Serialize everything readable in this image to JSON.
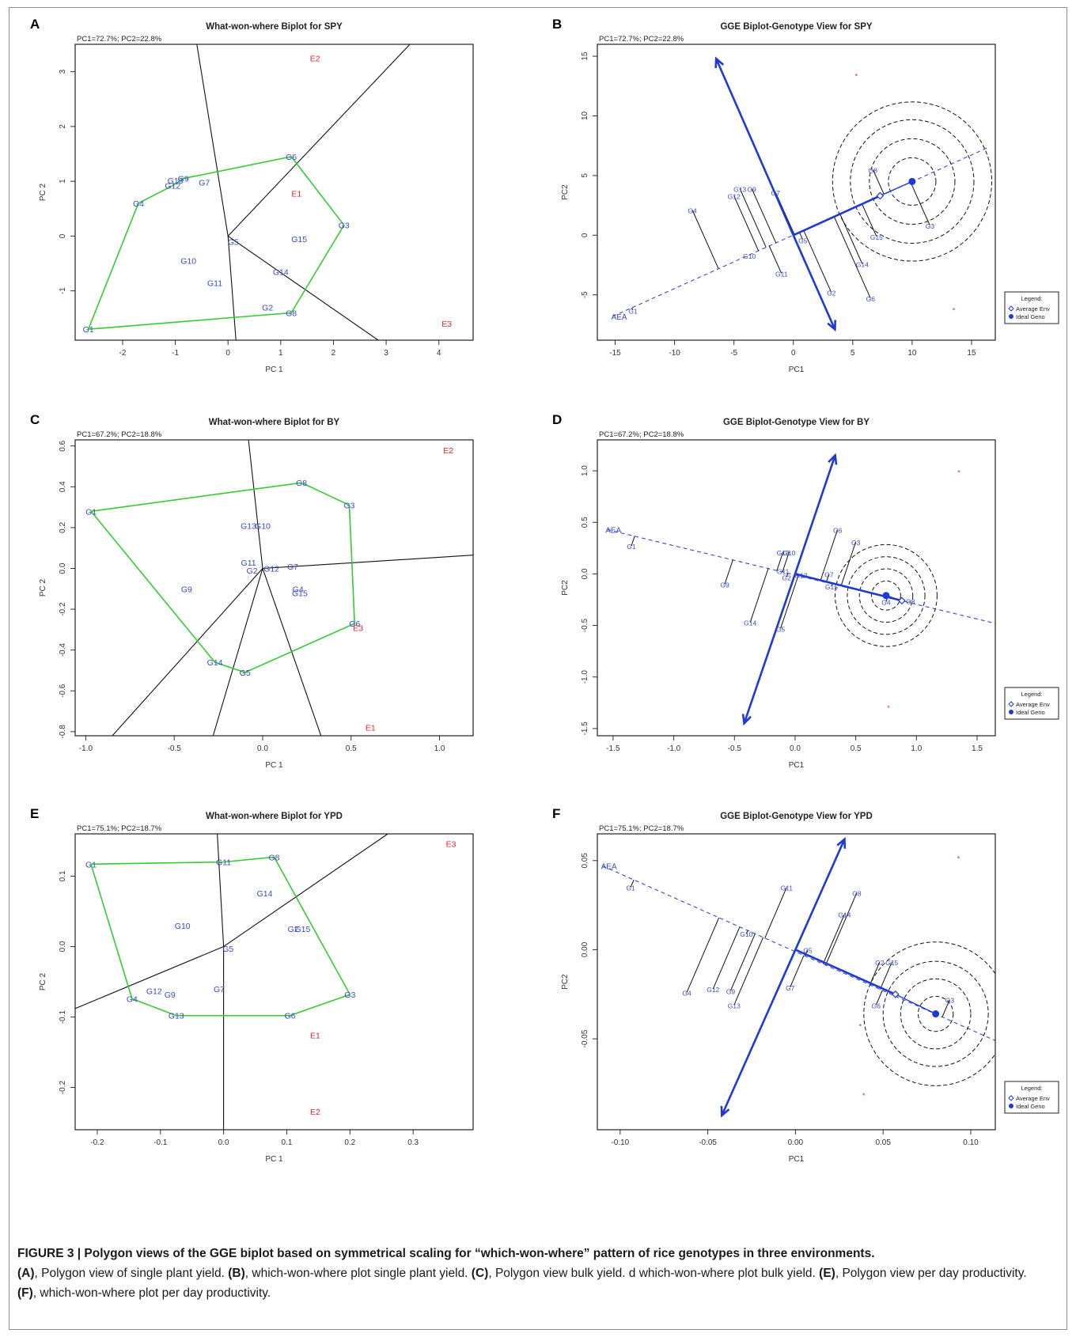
{
  "caption": {
    "title": "FIGURE 3 | Polygon views of the GGE biplot based on symmetrical scaling for “which-won-where” pattern of rice genotypes in three environments.",
    "body": [
      {
        "b": "(A)",
        "t": ", Polygon view of single plant yield. "
      },
      {
        "b": "(B)",
        "t": ", which-won-where plot single plant yield. "
      },
      {
        "b": "(C)",
        "t": ", Polygon view bulk yield. d which-won-where plot bulk yield. "
      },
      {
        "b": "(E)",
        "t": ", Polygon view per day productivity. "
      },
      {
        "b": "(F)",
        "t": ", which-won-where plot per day productivity."
      }
    ]
  },
  "chart_data": [
    {
      "panel": "A",
      "type": "scatter",
      "title": "What-won-where Biplot for SPY",
      "subtitle": "PC1=72.7%; PC2=22.8%",
      "xlabel": "PC 1",
      "ylabel": "PC 2",
      "xlim": [
        -2.9,
        4.65
      ],
      "ylim": [
        -1.9,
        3.5
      ],
      "xticks": [
        -2,
        -1,
        0,
        1,
        2,
        3,
        4
      ],
      "yticks": [
        -1,
        0,
        1,
        2,
        3
      ],
      "genotypes": [
        {
          "label": "G1",
          "x": -2.65,
          "y": -1.7
        },
        {
          "label": "G2",
          "x": 0.75,
          "y": -1.3
        },
        {
          "label": "G3",
          "x": 2.2,
          "y": 0.2
        },
        {
          "label": "G4",
          "x": -1.7,
          "y": 0.6
        },
        {
          "label": "G5",
          "x": 0.1,
          "y": -0.1
        },
        {
          "label": "G6",
          "x": 1.2,
          "y": 1.45
        },
        {
          "label": "G7",
          "x": -0.45,
          "y": 0.98
        },
        {
          "label": "G8",
          "x": 1.2,
          "y": -1.4
        },
        {
          "label": "G9",
          "x": -0.85,
          "y": 1.05
        },
        {
          "label": "G10",
          "x": -0.75,
          "y": -0.45
        },
        {
          "label": "G11",
          "x": -0.25,
          "y": -0.85
        },
        {
          "label": "G12",
          "x": -1.05,
          "y": 0.92
        },
        {
          "label": "G13",
          "x": -1.0,
          "y": 1.02
        },
        {
          "label": "G14",
          "x": 1.0,
          "y": -0.65
        },
        {
          "label": "G15",
          "x": 1.35,
          "y": -0.05
        }
      ],
      "environments": [
        {
          "label": "E1",
          "x": 1.3,
          "y": 0.78
        },
        {
          "label": "E2",
          "x": 1.65,
          "y": 3.25
        },
        {
          "label": "E3",
          "x": 4.15,
          "y": -1.6
        }
      ],
      "polygon": [
        "G1",
        "G4",
        "G12",
        "G9",
        "G6",
        "G3",
        "G8"
      ],
      "rays": [
        [
          -0.6,
          3.55
        ],
        [
          3.5,
          3.55
        ],
        [
          2.85,
          -1.9
        ],
        [
          0.15,
          -1.9
        ]
      ]
    },
    {
      "panel": "B",
      "type": "scatter",
      "title": "GGE Biplot-Genotype View for SPY",
      "subtitle": "PC1=72.7%; PC2=22.8%",
      "xlabel": "PC1",
      "ylabel": "PC2",
      "xlim": [
        -16.5,
        17
      ],
      "ylim": [
        -8.8,
        16
      ],
      "xticks": [
        -15,
        -10,
        -5,
        0,
        5,
        10,
        15
      ],
      "yticks": [
        -5,
        0,
        5,
        10,
        15
      ],
      "aea_label": "AEA",
      "genotypes": [
        {
          "label": "G1",
          "x": -13.5,
          "y": -6.3
        },
        {
          "label": "G2",
          "x": 3.2,
          "y": -4.8
        },
        {
          "label": "G3",
          "x": 11.5,
          "y": 0.8
        },
        {
          "label": "G4",
          "x": -8.5,
          "y": 2.1
        },
        {
          "label": "G5",
          "x": 0.8,
          "y": -0.4
        },
        {
          "label": "G6",
          "x": 6.5,
          "y": -5.3
        },
        {
          "label": "G7",
          "x": -1.5,
          "y": 3.6
        },
        {
          "label": "G8",
          "x": 6.7,
          "y": 5.5
        },
        {
          "label": "G9",
          "x": -3.5,
          "y": 3.9
        },
        {
          "label": "G10",
          "x": -3.7,
          "y": -1.7
        },
        {
          "label": "G11",
          "x": -1.0,
          "y": -3.2
        },
        {
          "label": "G12",
          "x": -5.0,
          "y": 3.3
        },
        {
          "label": "G13",
          "x": -4.5,
          "y": 3.9
        },
        {
          "label": "G14",
          "x": 5.8,
          "y": -2.4
        },
        {
          "label": "G15",
          "x": 7.0,
          "y": -0.1
        }
      ],
      "env_points": [
        {
          "x": 5.3,
          "y": 13.3
        },
        {
          "x": 13.5,
          "y": -6.3
        }
      ],
      "aea_line": [
        [
          -15.2,
          -6.8
        ],
        [
          16.5,
          7.4
        ]
      ],
      "ideal": {
        "x": 10.0,
        "y": 4.5
      },
      "avg_env": {
        "x": 7.3,
        "y": 3.3
      },
      "arrow_up": [
        -6.5,
        14.8
      ],
      "arrow_down": [
        3.5,
        -7.9
      ],
      "circle_radii": [
        2.0,
        3.6,
        5.2,
        6.7
      ],
      "legend": {
        "title": "Legend:",
        "items": [
          "Average Env",
          "Ideal Geno"
        ]
      }
    },
    {
      "panel": "C",
      "type": "scatter",
      "title": "What-won-where Biplot for BY",
      "subtitle": "PC1=67.2%; PC2=18.8%",
      "xlabel": "PC 1",
      "ylabel": "PC 2",
      "xlim": [
        -1.06,
        1.19
      ],
      "ylim": [
        -0.82,
        0.63
      ],
      "xticks": [
        -1.0,
        -0.5,
        0.0,
        0.5,
        1.0
      ],
      "yticks": [
        -0.8,
        -0.6,
        -0.4,
        -0.2,
        0.0,
        0.2,
        0.4,
        0.6
      ],
      "genotypes": [
        {
          "label": "G1",
          "x": -0.97,
          "y": 0.28
        },
        {
          "label": "G2",
          "x": -0.06,
          "y": -0.01
        },
        {
          "label": "G3",
          "x": 0.49,
          "y": 0.31
        },
        {
          "label": "G4",
          "x": 0.2,
          "y": -0.1
        },
        {
          "label": "G5",
          "x": -0.1,
          "y": -0.51
        },
        {
          "label": "G6",
          "x": 0.52,
          "y": -0.27
        },
        {
          "label": "G7",
          "x": 0.17,
          "y": 0.01
        },
        {
          "label": "G8",
          "x": 0.22,
          "y": 0.42
        },
        {
          "label": "G9",
          "x": -0.43,
          "y": -0.1
        },
        {
          "label": "G10",
          "x": 0.0,
          "y": 0.21
        },
        {
          "label": "G11",
          "x": -0.08,
          "y": 0.03
        },
        {
          "label": "G12",
          "x": 0.05,
          "y": 0.0
        },
        {
          "label": "G13",
          "x": -0.08,
          "y": 0.21
        },
        {
          "label": "G14",
          "x": -0.27,
          "y": -0.46
        },
        {
          "label": "G15",
          "x": 0.21,
          "y": -0.12
        }
      ],
      "environments": [
        {
          "label": "E1",
          "x": 0.61,
          "y": -0.78
        },
        {
          "label": "E2",
          "x": 1.05,
          "y": 0.58
        },
        {
          "label": "E3",
          "x": 0.54,
          "y": -0.29
        }
      ],
      "polygon": [
        "G1",
        "G8",
        "G3",
        "G6",
        "G5",
        "G14"
      ],
      "rays": [
        [
          -0.08,
          0.63
        ],
        [
          1.19,
          0.065
        ],
        [
          0.33,
          -0.82
        ],
        [
          -0.28,
          -0.82
        ],
        [
          -0.85,
          -0.82
        ]
      ]
    },
    {
      "panel": "D",
      "type": "scatter",
      "title": "GGE Biplot-Genotype View for BY",
      "subtitle": "PC1=67.2%; PC2=18.8%",
      "xlabel": "PC1",
      "ylabel": "PC2",
      "xlim": [
        -1.63,
        1.65
      ],
      "ylim": [
        -1.57,
        1.3
      ],
      "xticks": [
        -1.5,
        -1.0,
        -0.5,
        0.0,
        0.5,
        1.0,
        1.5
      ],
      "yticks": [
        -1.5,
        -1.0,
        -0.5,
        0.0,
        0.5,
        1.0
      ],
      "aea_label": "AEA",
      "genotypes": [
        {
          "label": "G1",
          "x": -1.35,
          "y": 0.27
        },
        {
          "label": "G2",
          "x": -0.07,
          "y": -0.03
        },
        {
          "label": "G3",
          "x": 0.5,
          "y": 0.31
        },
        {
          "label": "G4",
          "x": 0.75,
          "y": -0.27
        },
        {
          "label": "G5",
          "x": -0.12,
          "y": -0.53
        },
        {
          "label": "G6",
          "x": 0.35,
          "y": 0.43
        },
        {
          "label": "G7",
          "x": 0.28,
          "y": 0.0
        },
        {
          "label": "G8",
          "x": 0.95,
          "y": -0.26
        },
        {
          "label": "G9",
          "x": -0.58,
          "y": -0.1
        },
        {
          "label": "G10",
          "x": -0.05,
          "y": 0.21
        },
        {
          "label": "G11",
          "x": -0.1,
          "y": 0.03
        },
        {
          "label": "G12",
          "x": 0.05,
          "y": -0.01
        },
        {
          "label": "G13",
          "x": -0.1,
          "y": 0.21
        },
        {
          "label": "G14",
          "x": -0.37,
          "y": -0.47
        },
        {
          "label": "G15",
          "x": 0.3,
          "y": -0.12
        }
      ],
      "env_points": [
        {
          "x": 1.35,
          "y": 0.98
        },
        {
          "x": 0.77,
          "y": -1.3
        }
      ],
      "aea_line": [
        [
          -1.55,
          0.43
        ],
        [
          1.65,
          -0.48
        ]
      ],
      "ideal": {
        "x": 0.75,
        "y": -0.21
      },
      "avg_env": {
        "x": 0.88,
        "y": -0.26
      },
      "arrow_up": [
        0.33,
        1.15
      ],
      "arrow_down": [
        -0.42,
        -1.45
      ],
      "circle_radii": [
        0.12,
        0.22,
        0.32,
        0.42
      ],
      "legend": {
        "title": "Legend:",
        "items": [
          "Average Env",
          "Ideal Geno"
        ]
      }
    },
    {
      "panel": "E",
      "type": "scatter",
      "title": "What-won-where Biplot for YPD",
      "subtitle": "PC1=75.1%; PC2=18.7%",
      "xlabel": "PC 1",
      "ylabel": "PC 2",
      "xlim": [
        -0.235,
        0.395
      ],
      "ylim": [
        -0.26,
        0.16
      ],
      "xticks": [
        -0.2,
        -0.1,
        0.0,
        0.1,
        0.2,
        0.3
      ],
      "yticks": [
        -0.2,
        -0.1,
        0.0,
        0.1
      ],
      "genotypes": [
        {
          "label": "G1",
          "x": -0.21,
          "y": 0.117
        },
        {
          "label": "G2",
          "x": 0.11,
          "y": 0.025
        },
        {
          "label": "G3",
          "x": 0.2,
          "y": -0.068
        },
        {
          "label": "G4",
          "x": -0.145,
          "y": -0.074
        },
        {
          "label": "G5",
          "x": 0.007,
          "y": -0.003
        },
        {
          "label": "G6",
          "x": 0.105,
          "y": -0.098
        },
        {
          "label": "G7",
          "x": -0.007,
          "y": -0.06
        },
        {
          "label": "G8",
          "x": 0.08,
          "y": 0.127
        },
        {
          "label": "G9",
          "x": -0.085,
          "y": -0.068
        },
        {
          "label": "G10",
          "x": -0.065,
          "y": 0.03
        },
        {
          "label": "G11",
          "x": 0.0,
          "y": 0.12
        },
        {
          "label": "G12",
          "x": -0.11,
          "y": -0.063
        },
        {
          "label": "G13",
          "x": -0.075,
          "y": -0.098
        },
        {
          "label": "G14",
          "x": 0.065,
          "y": 0.076
        },
        {
          "label": "G15",
          "x": 0.125,
          "y": 0.025
        }
      ],
      "environments": [
        {
          "label": "E1",
          "x": 0.145,
          "y": -0.126
        },
        {
          "label": "E2",
          "x": 0.145,
          "y": -0.234
        },
        {
          "label": "E3",
          "x": 0.36,
          "y": 0.146
        }
      ],
      "polygon": [
        "G1",
        "G11",
        "G8",
        "G3",
        "G6",
        "G13",
        "G4"
      ],
      "rays": [
        [
          -0.01,
          0.16
        ],
        [
          0.26,
          0.16
        ],
        [
          -0.235,
          -0.088
        ],
        [
          0.0,
          -0.26
        ]
      ]
    },
    {
      "panel": "F",
      "type": "scatter",
      "title": "GGE Biplot-Genotype View for YPD",
      "subtitle": "PC1=75.1%; PC2=18.7%",
      "xlabel": "PC1",
      "ylabel": "PC2",
      "xlim": [
        -0.113,
        0.114
      ],
      "ylim": [
        -0.101,
        0.065
      ],
      "xticks": [
        -0.1,
        -0.05,
        0.0,
        0.05,
        0.1
      ],
      "yticks": [
        -0.05,
        0.0,
        0.05
      ],
      "aea_label": "AEA",
      "genotypes": [
        {
          "label": "G1",
          "x": -0.094,
          "y": 0.035
        },
        {
          "label": "G2",
          "x": 0.048,
          "y": -0.007
        },
        {
          "label": "G3",
          "x": 0.088,
          "y": -0.028
        },
        {
          "label": "G4",
          "x": -0.062,
          "y": -0.024
        },
        {
          "label": "G5",
          "x": 0.007,
          "y": 0.0
        },
        {
          "label": "G6",
          "x": 0.046,
          "y": -0.031
        },
        {
          "label": "G7",
          "x": -0.003,
          "y": -0.021
        },
        {
          "label": "G8",
          "x": 0.035,
          "y": 0.032
        },
        {
          "label": "G9",
          "x": -0.037,
          "y": -0.023
        },
        {
          "label": "G10",
          "x": -0.028,
          "y": 0.009
        },
        {
          "label": "G11",
          "x": -0.005,
          "y": 0.035
        },
        {
          "label": "G12",
          "x": -0.047,
          "y": -0.022
        },
        {
          "label": "G13",
          "x": -0.035,
          "y": -0.031
        },
        {
          "label": "G14",
          "x": 0.028,
          "y": 0.02
        },
        {
          "label": "G15",
          "x": 0.055,
          "y": -0.007
        }
      ],
      "env_points": [
        {
          "x": 0.093,
          "y": 0.051
        },
        {
          "x": 0.037,
          "y": -0.043
        },
        {
          "x": 0.039,
          "y": -0.082
        }
      ],
      "aea_line": [
        [
          -0.11,
          0.047
        ],
        [
          0.114,
          -0.051
        ]
      ],
      "ideal": {
        "x": 0.08,
        "y": -0.036
      },
      "avg_env": {
        "x": 0.057,
        "y": -0.025
      },
      "arrow_up": [
        0.028,
        0.062
      ],
      "arrow_down": [
        -0.042,
        -0.093
      ],
      "circle_radii": [
        0.01,
        0.02,
        0.03,
        0.041
      ],
      "legend": {
        "title": "Legend:",
        "items": [
          "Average Env",
          "Ideal Geno"
        ]
      }
    }
  ]
}
